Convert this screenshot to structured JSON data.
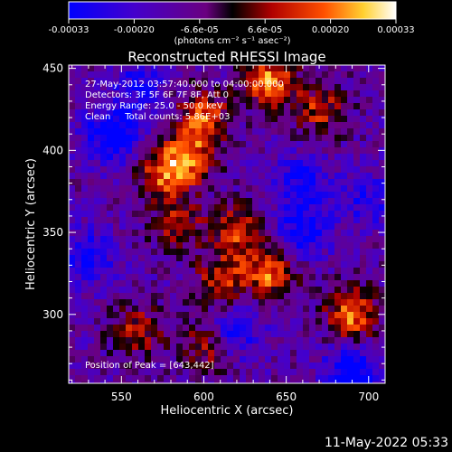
{
  "colorbar": {
    "ticks": [
      "-0.00033",
      "-0.00020",
      "-6.6e-05",
      "6.6e-05",
      "0.00020",
      "0.00033"
    ],
    "unit_label": "(photons cm⁻² s⁻¹ asec⁻²)",
    "colors": [
      "#0000ff",
      "#3a00c8",
      "#7a0088",
      "#1a0000",
      "#cc2000",
      "#ff8000",
      "#ffff40",
      "#ffffff"
    ]
  },
  "chart_data": {
    "type": "heatmap",
    "title": "Reconstructed RHESSI Image",
    "xlabel": "Heliocentric X (arcsec)",
    "ylabel": "Heliocentric Y (arcsec)",
    "xlim": [
      518,
      710
    ],
    "ylim": [
      258,
      452
    ],
    "xticks": [
      550,
      600,
      650,
      700
    ],
    "yticks": [
      300,
      350,
      400,
      450
    ],
    "vmin": -0.00033,
    "vmax": 0.00033,
    "peak": {
      "x": 643,
      "y": 442
    },
    "hot_spots": [
      {
        "x": 600,
        "y": 420,
        "v": 0.00028
      },
      {
        "x": 590,
        "y": 395,
        "v": 0.0003
      },
      {
        "x": 575,
        "y": 385,
        "v": 0.00025
      },
      {
        "x": 620,
        "y": 350,
        "v": 0.00026
      },
      {
        "x": 640,
        "y": 325,
        "v": 0.0003
      },
      {
        "x": 610,
        "y": 320,
        "v": 0.00024
      },
      {
        "x": 690,
        "y": 300,
        "v": 0.00032
      },
      {
        "x": 640,
        "y": 442,
        "v": 0.00033
      },
      {
        "x": 670,
        "y": 425,
        "v": 0.00022
      },
      {
        "x": 560,
        "y": 290,
        "v": 0.0002
      },
      {
        "x": 600,
        "y": 280,
        "v": 0.00018
      },
      {
        "x": 585,
        "y": 355,
        "v": 0.0002
      }
    ],
    "cold_spots": [
      {
        "x": 545,
        "y": 410,
        "v": -0.0003
      },
      {
        "x": 660,
        "y": 380,
        "v": -0.0002
      },
      {
        "x": 660,
        "y": 350,
        "v": -0.00022
      },
      {
        "x": 690,
        "y": 265,
        "v": -0.00028
      },
      {
        "x": 530,
        "y": 335,
        "v": -0.0002
      },
      {
        "x": 620,
        "y": 290,
        "v": -0.00018
      },
      {
        "x": 560,
        "y": 440,
        "v": -0.00015
      },
      {
        "x": 700,
        "y": 370,
        "v": -0.00016
      }
    ]
  },
  "annotations": {
    "line1": "27-May-2012 03:57:40.000 to 04:00:00.000",
    "line2": "Detectors: 3F 5F 6F 7F 8F, Att 0",
    "line3": "Energy Range: 25.0 - 50.0 keV",
    "line4": "Clean     Total counts: 5.86E+03",
    "peak_label": "Position of Peak = [643,442]"
  },
  "footer": {
    "date": "11-May-2022 05:33"
  }
}
